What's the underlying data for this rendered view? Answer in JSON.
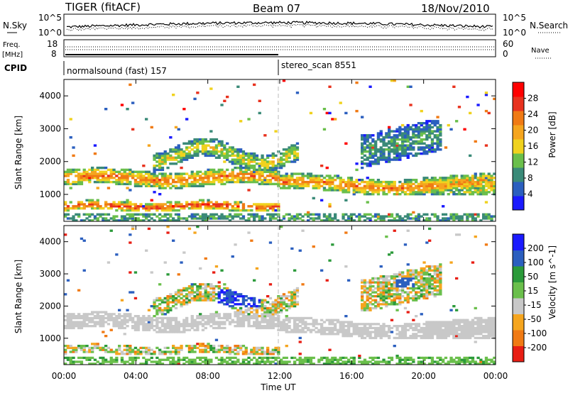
{
  "header": {
    "radar": "TIGER (fitACF)",
    "beam": "Beam 07",
    "date": "18/Nov/2010"
  },
  "summary": {
    "nsky_label": "N.Sky",
    "nsky_ticks": [
      "10^5",
      "10^0"
    ],
    "nsearch_label": "N.Search",
    "nsearch_ticks": [
      "10^5",
      "10^0"
    ],
    "freq_label_1": "Freq.",
    "freq_label_2": "[MHz]",
    "freq_ticks": [
      "18",
      "8"
    ],
    "nave_label": "Nave",
    "nave_ticks": [
      "60",
      "0"
    ],
    "cpid_label": "CPID",
    "cpid_segments": [
      {
        "name": "normalsound (fast) 157",
        "start_ut": 0
      },
      {
        "name": "stereo_scan 8551",
        "start_ut": 12
      }
    ]
  },
  "chart_data": [
    {
      "type": "heatmap",
      "title": "",
      "xlabel": "",
      "ylabel": "Slant Range [km]",
      "xlim": [
        0,
        24
      ],
      "ylim": [
        180,
        4500
      ],
      "yticks": [
        "4000",
        "3000",
        "2000",
        "1000"
      ],
      "colorbar": {
        "label": "Power [dB]",
        "ticks": [
          "28",
          "24",
          "20",
          "16",
          "12",
          "8",
          "4"
        ],
        "range": [
          0,
          30
        ],
        "colors": [
          "#1a1aff",
          "#2b5fbf",
          "#3a8a78",
          "#6abf4b",
          "#f0d21e",
          "#f5a51e",
          "#f07a14",
          "#e8321e",
          "#ff0000"
        ]
      },
      "features": [
        {
          "desc": "E-region band",
          "ut": [
            0,
            12
          ],
          "range_km": [
            550,
            800
          ]
        },
        {
          "desc": "main F band",
          "ut": [
            0,
            12
          ],
          "range_km": [
            1300,
            1700
          ]
        },
        {
          "desc": "late F band",
          "ut": [
            16,
            24
          ],
          "range_km": [
            1000,
            1600
          ]
        }
      ]
    },
    {
      "type": "heatmap",
      "title": "",
      "xlabel": "Time UT",
      "ylabel": "Slant Range [km]",
      "xlim": [
        0,
        24
      ],
      "ylim": [
        180,
        4500
      ],
      "xticks": [
        "00:00",
        "04:00",
        "08:00",
        "12:00",
        "16:00",
        "20:00",
        "00:00"
      ],
      "yticks": [
        "4000",
        "3000",
        "2000",
        "1000"
      ],
      "colorbar": {
        "label": "Velocity [m s^-1]",
        "ticks": [
          "200",
          "100",
          "50",
          "15",
          "-15",
          "-50",
          "-100",
          "-200"
        ],
        "range": [
          -250,
          250
        ],
        "colors": [
          "#e81e14",
          "#f07a14",
          "#f5a51e",
          "#c8c8c8",
          "#6abf4b",
          "#2b9a3a",
          "#2b5fbf",
          "#1a1aff"
        ]
      },
      "features": [
        {
          "desc": "ground scatter (grey)",
          "ut": [
            0,
            24
          ],
          "range_km": [
            800,
            1800
          ]
        },
        {
          "desc": "positive velocity patch",
          "ut": [
            8.5,
            11
          ],
          "range_km": [
            2000,
            2500
          ]
        }
      ]
    }
  ]
}
